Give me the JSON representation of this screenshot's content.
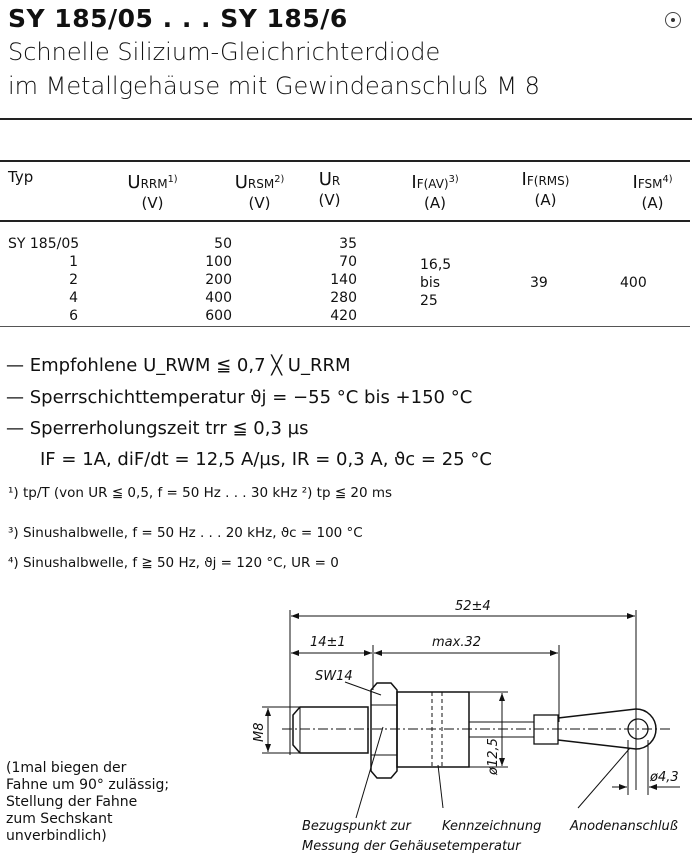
{
  "header": {
    "title": "SY 185/05 . . . SY 185/6",
    "subtitle_line1": "Schnelle Silizium-Gleichrichterdiode",
    "subtitle_line2": "im Metallgehäuse mit Gewindeanschluß M 8"
  },
  "table": {
    "columns": [
      {
        "name": "Typ",
        "sub": "",
        "fn": "",
        "unit": ""
      },
      {
        "name": "U",
        "sub": "RRM",
        "fn": "1)",
        "unit": "(V)"
      },
      {
        "name": "U",
        "sub": "RSM",
        "fn": "2)",
        "unit": "(V)"
      },
      {
        "name": "U",
        "sub": "R",
        "fn": "",
        "unit": "(V)"
      },
      {
        "name": "I",
        "sub": "F(AV)",
        "fn": "3)",
        "unit": "(A)"
      },
      {
        "name": "I",
        "sub": "F(RMS)",
        "fn": "",
        "unit": "(A)"
      },
      {
        "name": "I",
        "sub": "FSM",
        "fn": "4)",
        "unit": "(A)"
      }
    ],
    "rows": [
      {
        "typ": "SY  185/05",
        "urrm": "50",
        "ur": "35"
      },
      {
        "typ": "1",
        "urrm": "100",
        "ur": "70"
      },
      {
        "typ": "2",
        "urrm": "200",
        "ur": "140"
      },
      {
        "typ": "4",
        "urrm": "400",
        "ur": "280"
      },
      {
        "typ": "6",
        "urrm": "600",
        "ur": "420"
      }
    ],
    "if_av": [
      "16,5",
      "bis",
      "25"
    ],
    "if_rms": "39",
    "ifsm": "400"
  },
  "conditions": [
    "— Empfohlene U_RWM ≦ 0,7 ╳ U_RRM",
    "— Sperrschichttemperatur     ϑj = −55 °C bis +150 °C",
    "— Sperrerholungszeit trr ≦ 0,3 µs",
    "IF = 1A, diF/dt = 12,5 A/µs, IR = 0,3 A, ϑc =  25 °C"
  ],
  "footnotes": [
    "¹) tp/T (von UR ≦ 0,5, f = 50 Hz . . . 30 kHz ²) tp ≦ 20 ms",
    "³)  Sinushalbwelle, f = 50 Hz . . . 20 kHz, ϑc = 100 °C",
    "⁴)  Sinushalbwelle, f ≧ 50 Hz, ϑj  = 120 °C, UR = 0"
  ],
  "note": "(1mal biegen der\nFahne um 90° zulässig;\nStellung der Fahne\nzum Sechskant\nunverbindlich)",
  "drawing": {
    "dim_total": "52±4",
    "dim_thread": "14±1",
    "dim_body": "max.32",
    "hex": "SW14",
    "thread": "M8",
    "body_dia": "ø12,5",
    "eye_dia": "ø4,3",
    "label_reference": "Bezugspunkt zur",
    "label_reference2": "Messung der Gehäusetemperatur",
    "label_marking": "Kennzeichnung",
    "label_anode": "Anodenanschluß"
  },
  "corner_mark_icon": "circle-dot-icon"
}
